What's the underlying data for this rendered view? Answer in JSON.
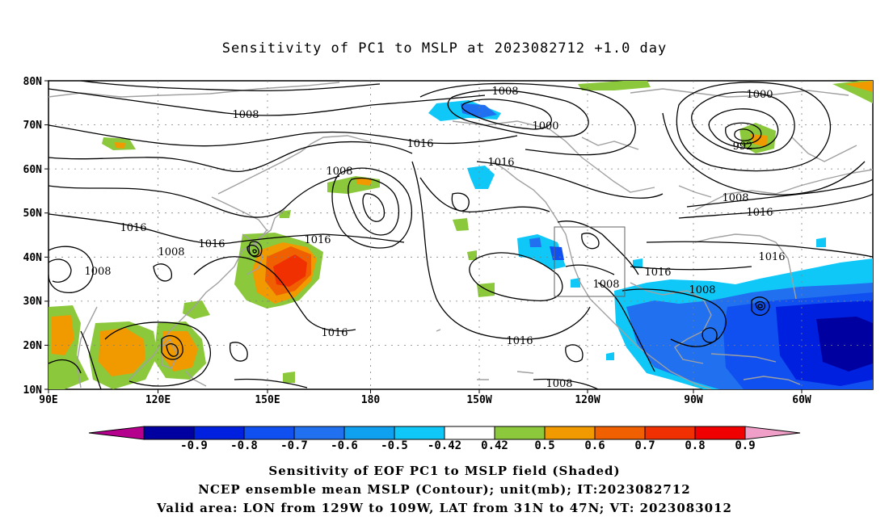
{
  "title": "Sensitivity of PC1 to MSLP at 2023082712 +1.0 day",
  "axes": {
    "lat_labels": [
      "80N",
      "70N",
      "60N",
      "50N",
      "40N",
      "30N",
      "20N",
      "10N"
    ],
    "lon_labels": [
      "90E",
      "120E",
      "150E",
      "180",
      "150W",
      "120W",
      "90W",
      "60W"
    ]
  },
  "contour_labels": [
    {
      "text": "1008",
      "key": "L1"
    },
    {
      "text": "1008",
      "key": "L2"
    },
    {
      "text": "1000",
      "key": "L3"
    },
    {
      "text": "1000",
      "key": "L4"
    },
    {
      "text": "992",
      "key": "L5"
    },
    {
      "text": "1016",
      "key": "L6"
    },
    {
      "text": "1016",
      "key": "L7"
    },
    {
      "text": "1008",
      "key": "L8"
    },
    {
      "text": "1008",
      "key": "L9"
    },
    {
      "text": "1016",
      "key": "L10"
    },
    {
      "text": "1016",
      "key": "L11"
    },
    {
      "text": "1008",
      "key": "L12"
    },
    {
      "text": "1016",
      "key": "L13"
    },
    {
      "text": "1008",
      "key": "L14"
    },
    {
      "text": "1016",
      "key": "L15"
    },
    {
      "text": "1016",
      "key": "L16"
    },
    {
      "text": "1008",
      "key": "L17"
    },
    {
      "text": "1016",
      "key": "L18"
    },
    {
      "text": "1016",
      "key": "L19"
    },
    {
      "text": "1016",
      "key": "L20"
    },
    {
      "text": "1008",
      "key": "L21"
    },
    {
      "text": "1008",
      "key": "L22"
    }
  ],
  "colorbar": {
    "tick_labels": [
      "-0.9",
      "-0.8",
      "-0.7",
      "-0.6",
      "-0.5",
      "-0.42",
      "0.42",
      "0.5",
      "0.6",
      "0.7",
      "0.8",
      "0.9"
    ],
    "colors": [
      "#b4008c",
      "#0000a0",
      "#0020e0",
      "#1050f0",
      "#2070f0",
      "#10a0f0",
      "#10c8f8",
      "#ffffff",
      "#8cc83c",
      "#f09a00",
      "#f06000",
      "#f03000",
      "#f00000",
      "#f0a0c8"
    ]
  },
  "footer": {
    "line1": "Sensitivity of EOF PC1 to MSLP field (Shaded)",
    "line2": "NCEP ensemble mean MSLP (Contour); unit(mb); IT:2023082712",
    "line3": "Valid area: LON from 129W to 109W, LAT from 31N to 47N; VT: 2023083012"
  }
}
